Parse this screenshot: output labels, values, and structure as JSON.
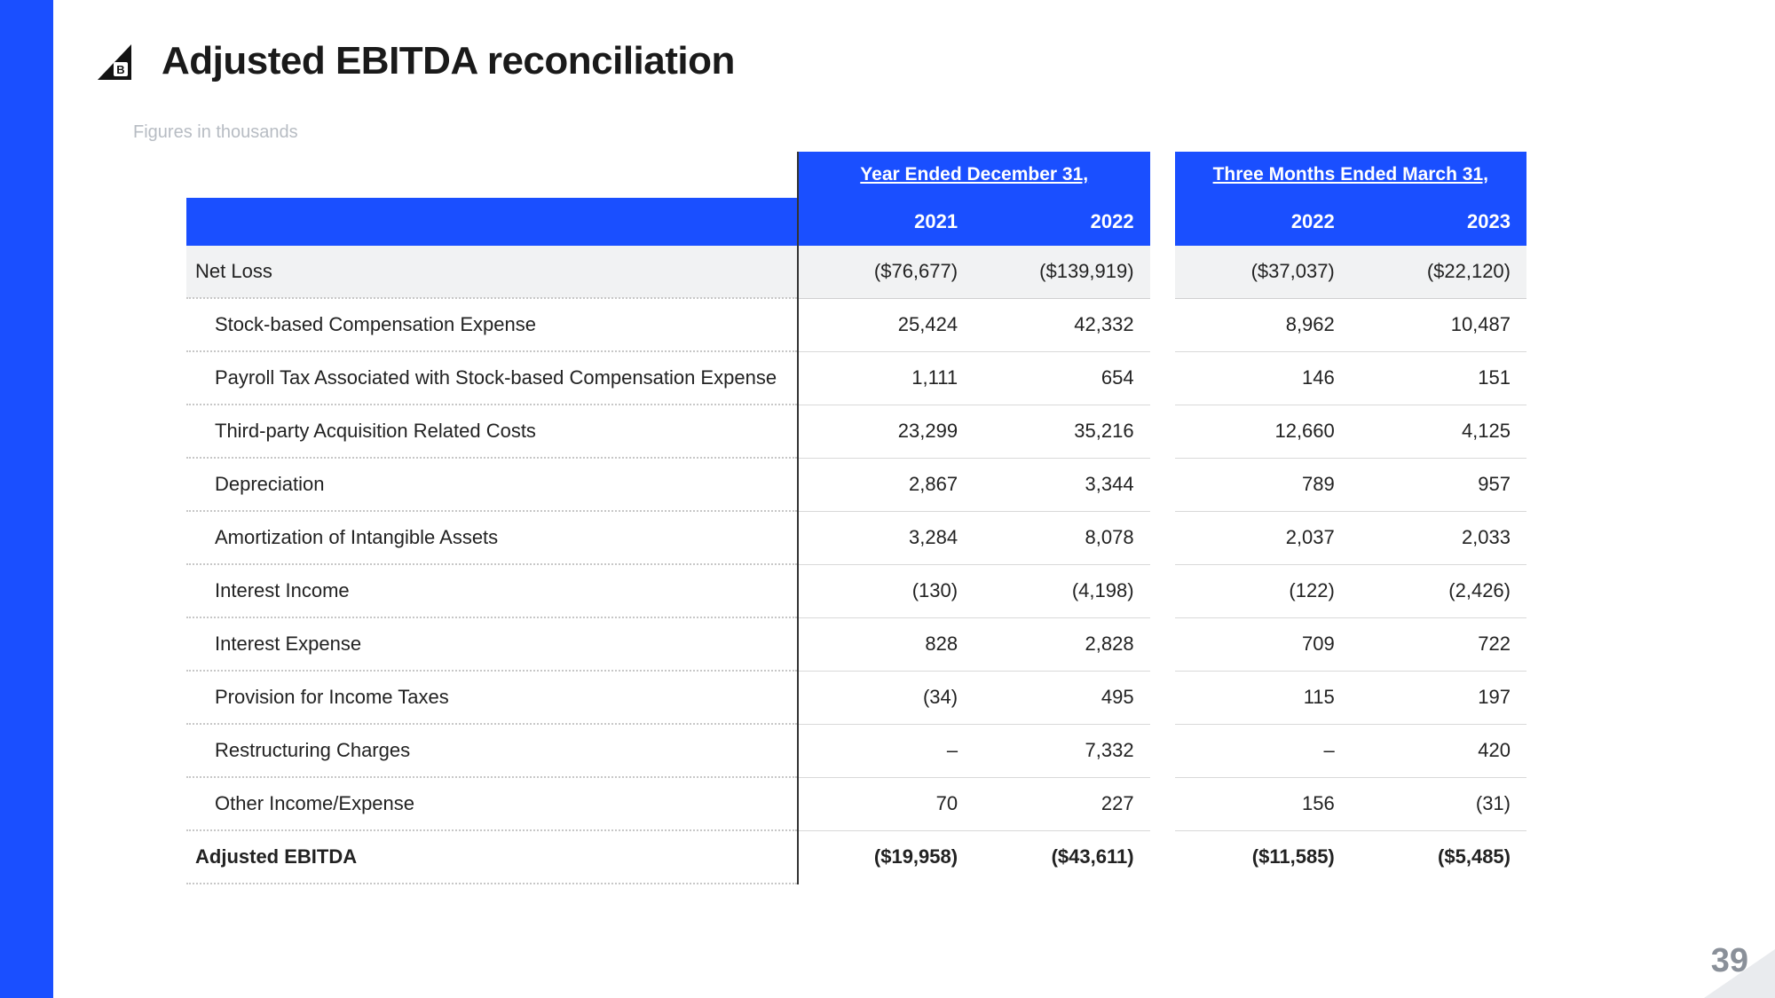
{
  "accent_color": "#1a4fff",
  "title": "Adjusted EBITDA reconciliation",
  "subtitle": "Figures in thousands",
  "page_number": "39",
  "header_groups": [
    "Year Ended December 31,",
    "Three Months Ended March 31,"
  ],
  "years": [
    "2021",
    "2022",
    "2022",
    "2023"
  ],
  "rows": [
    {
      "label": "Net Loss",
      "vals": [
        "($76,677)",
        "($139,919)",
        "($37,037)",
        "($22,120)"
      ],
      "kind": "netloss"
    },
    {
      "label": "Stock-based Compensation Expense",
      "vals": [
        "25,424",
        "42,332",
        "8,962",
        "10,487"
      ],
      "kind": "item"
    },
    {
      "label": "Payroll Tax Associated with Stock-based Compensation Expense",
      "vals": [
        "1,111",
        "654",
        "146",
        "151"
      ],
      "kind": "item"
    },
    {
      "label": "Third-party Acquisition Related Costs",
      "vals": [
        "23,299",
        "35,216",
        "12,660",
        "4,125"
      ],
      "kind": "item"
    },
    {
      "label": "Depreciation",
      "vals": [
        "2,867",
        "3,344",
        "789",
        "957"
      ],
      "kind": "item"
    },
    {
      "label": "Amortization of Intangible Assets",
      "vals": [
        "3,284",
        "8,078",
        "2,037",
        "2,033"
      ],
      "kind": "item"
    },
    {
      "label": "Interest Income",
      "vals": [
        "(130)",
        "(4,198)",
        "(122)",
        "(2,426)"
      ],
      "kind": "item"
    },
    {
      "label": "Interest Expense",
      "vals": [
        "828",
        "2,828",
        "709",
        "722"
      ],
      "kind": "item"
    },
    {
      "label": "Provision for Income Taxes",
      "vals": [
        "(34)",
        "495",
        "115",
        "197"
      ],
      "kind": "item"
    },
    {
      "label": "Restructuring Charges",
      "vals": [
        "–",
        "7,332",
        "–",
        "420"
      ],
      "kind": "item"
    },
    {
      "label": "Other Income/Expense",
      "vals": [
        "70",
        "227",
        "156",
        "(31)"
      ],
      "kind": "item"
    },
    {
      "label": "Adjusted EBITDA",
      "vals": [
        "($19,958)",
        "($43,611)",
        "($11,585)",
        "($5,485)"
      ],
      "kind": "total"
    }
  ]
}
